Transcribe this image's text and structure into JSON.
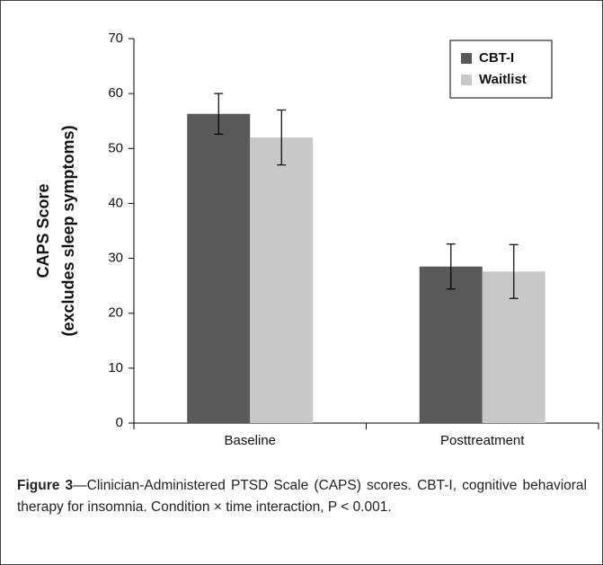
{
  "chart_data": {
    "type": "bar",
    "ylabel": [
      "CAPS Score",
      "(excludes sleep symptoms)"
    ],
    "categories": [
      "Baseline",
      "Posttreatment"
    ],
    "series": [
      {
        "name": "CBT-I",
        "color": "#595959",
        "values": [
          56.3,
          28.5
        ],
        "errors": [
          3.7,
          4.1
        ]
      },
      {
        "name": "Waitlist",
        "color": "#c8c8c8",
        "values": [
          52.0,
          27.6
        ],
        "errors": [
          5.0,
          4.9
        ]
      }
    ],
    "ylim": [
      0,
      70
    ],
    "yticks": [
      0,
      10,
      20,
      30,
      40,
      50,
      60,
      70
    ],
    "grid": false,
    "legend": "upper right"
  },
  "caption": {
    "label": "Figure 3",
    "text": "—Clinician-Administered PTSD Scale (CAPS) scores. CBT-I, cognitive behavioral therapy for insomnia. Condition × time interaction, P < 0.001."
  }
}
